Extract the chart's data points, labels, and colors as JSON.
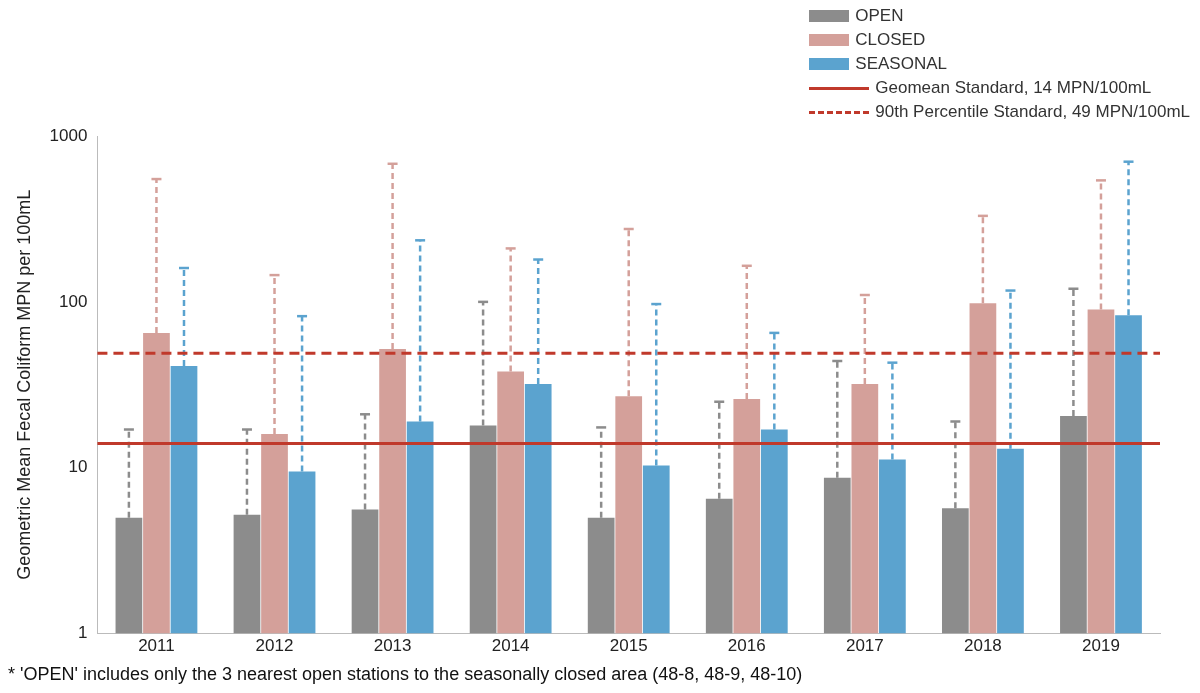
{
  "chart_data": {
    "type": "bar",
    "categories": [
      "2011",
      "2012",
      "2013",
      "2014",
      "2015",
      "2016",
      "2017",
      "2018",
      "2019"
    ],
    "ylabel": "Geometric Mean Fecal Coliform MPN per 100mL",
    "log": "y",
    "ylim": [
      1,
      1000
    ],
    "yticks": [
      1,
      10,
      100,
      1000
    ],
    "grid": false,
    "legend": "top right",
    "series": [
      {
        "name": "OPEN",
        "color": "#8c8c8c",
        "values": [
          5,
          5.2,
          5.6,
          18,
          5,
          6.5,
          8.7,
          5.7,
          20.5
        ],
        "errors": [
          [
            5,
            17
          ],
          [
            5.2,
            17
          ],
          [
            5.6,
            21
          ],
          [
            18,
            100
          ],
          [
            5,
            17.5
          ],
          [
            6.5,
            25
          ],
          [
            8.7,
            44
          ],
          [
            5.7,
            19
          ],
          [
            20.5,
            120
          ]
        ]
      },
      {
        "name": "CLOSED",
        "color": "#d4a09a",
        "values": [
          65,
          16,
          52,
          38,
          27,
          26,
          32,
          98,
          90
        ],
        "errors": [
          [
            65,
            550
          ],
          [
            16,
            145
          ],
          [
            52,
            680
          ],
          [
            38,
            210
          ],
          [
            27,
            275
          ],
          [
            26,
            165
          ],
          [
            32,
            110
          ],
          [
            98,
            330
          ],
          [
            90,
            540
          ]
        ]
      },
      {
        "name": "SEASONAL",
        "color": "#5ba3cf",
        "values": [
          41,
          9.5,
          19,
          32,
          10.3,
          17,
          11.2,
          13,
          83
        ],
        "errors": [
          [
            41,
            160
          ],
          [
            9.5,
            82
          ],
          [
            19,
            235
          ],
          [
            32,
            180
          ],
          [
            10.3,
            97
          ],
          [
            17,
            65
          ],
          [
            11.2,
            43
          ],
          [
            13,
            117
          ],
          [
            83,
            700
          ]
        ]
      }
    ],
    "ref_lines": [
      {
        "axis": "y",
        "value": 14,
        "label": "Geomean Standard, 14 MPN/100mL",
        "color": "#c0392b",
        "line_style": "solid"
      },
      {
        "axis": "y",
        "value": 49,
        "label": "90th Percentile Standard, 49 MPN/100mL",
        "color": "#c0392b",
        "line_style": "dashed"
      }
    ],
    "annotations": [
      "* 'OPEN' includes only the 3 nearest open stations to the seasonally closed area (48-8, 48-9, 48-10)"
    ]
  }
}
